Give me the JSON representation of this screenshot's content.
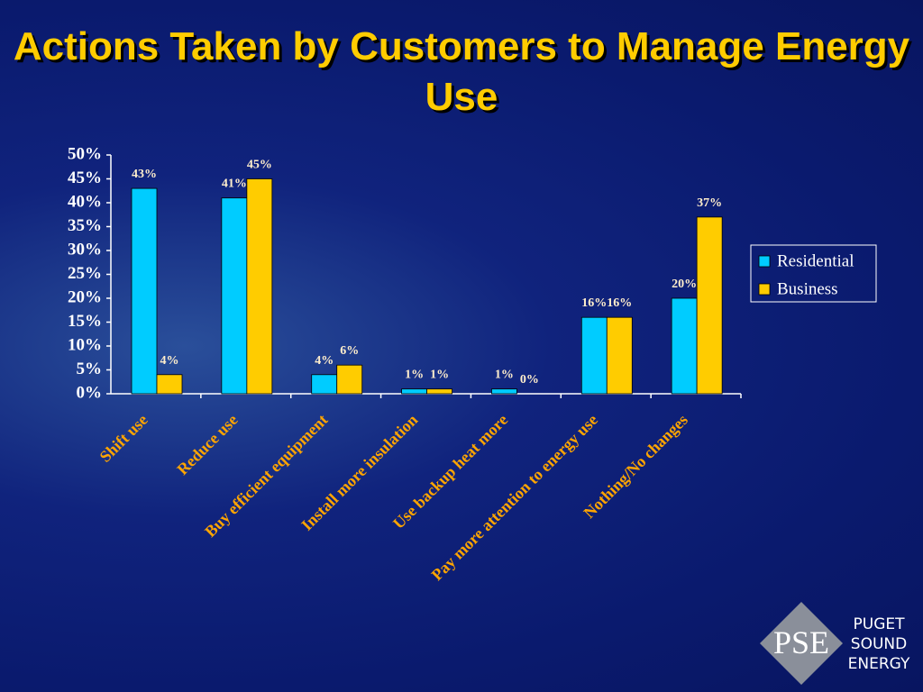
{
  "chart_data": {
    "type": "bar",
    "title": "Actions Taken by Customers to Manage Energy Use",
    "categories": [
      "Shift use",
      "Reduce use",
      "Buy efficient equipment",
      "Install more insulation",
      "Use backup heat more",
      "Pay more attention to energy use",
      "Nothing/No changes"
    ],
    "series": [
      {
        "name": "Residential",
        "color": "#00ccff",
        "values": [
          43,
          41,
          4,
          1,
          1,
          16,
          20
        ],
        "value_labels": [
          "43%",
          "41%",
          "4%",
          "1%",
          "1%",
          "16%",
          "20%"
        ]
      },
      {
        "name": "Business",
        "color": "#ffcc00",
        "values": [
          4,
          45,
          6,
          1,
          0,
          16,
          37
        ],
        "value_labels": [
          "4%",
          "45%",
          "6%",
          "1%",
          "0%",
          "16%",
          "37%"
        ]
      }
    ],
    "ylim": [
      0,
      50
    ],
    "yticks": [
      {
        "value": 0,
        "label": "0%"
      },
      {
        "value": 5,
        "label": "5%"
      },
      {
        "value": 10,
        "label": "10%"
      },
      {
        "value": 15,
        "label": "15%"
      },
      {
        "value": 20,
        "label": "20%"
      },
      {
        "value": 25,
        "label": "25%"
      },
      {
        "value": 30,
        "label": "30%"
      },
      {
        "value": 35,
        "label": "35%"
      },
      {
        "value": 40,
        "label": "40%"
      },
      {
        "value": 45,
        "label": "45%"
      },
      {
        "value": 50,
        "label": "50%"
      }
    ],
    "grid": false,
    "legend": "right"
  },
  "logo": {
    "mark": "PSE",
    "lines": [
      "PUGET",
      "SOUND",
      "ENERGY"
    ]
  }
}
